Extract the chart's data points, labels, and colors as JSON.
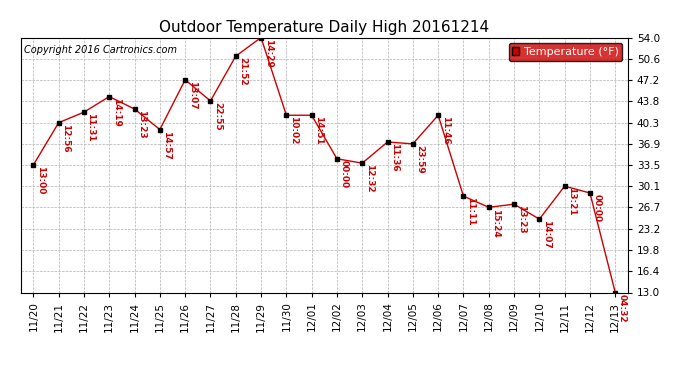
{
  "title": "Outdoor Temperature Daily High 20161214",
  "copyright": "Copyright 2016 Cartronics.com",
  "legend_label": "Temperature (°F)",
  "dates": [
    "11/20",
    "11/21",
    "11/22",
    "11/23",
    "11/24",
    "11/25",
    "11/26",
    "11/27",
    "11/28",
    "11/29",
    "11/30",
    "12/01",
    "12/02",
    "12/03",
    "12/04",
    "12/05",
    "12/06",
    "12/07",
    "12/08",
    "12/09",
    "12/10",
    "12/11",
    "12/12",
    "12/13"
  ],
  "temps": [
    33.5,
    40.3,
    42.0,
    44.5,
    42.5,
    39.2,
    47.2,
    43.8,
    51.0,
    54.0,
    41.5,
    41.5,
    34.5,
    33.8,
    37.2,
    36.9,
    41.5,
    28.5,
    26.7,
    27.2,
    24.8,
    30.1,
    29.0,
    13.0
  ],
  "time_labels": [
    "13:00",
    "12:56",
    "11:31",
    "14:19",
    "13:23",
    "14:57",
    "13:07",
    "22:55",
    "21:52",
    "14:29",
    "10:02",
    "14:51",
    "00:00",
    "12:32",
    "11:36",
    "23:59",
    "11:46",
    "11:11",
    "15:24",
    "13:23",
    "14:07",
    "13:21",
    "00:00",
    "04:32"
  ],
  "line_color": "#cc0000",
  "marker_color": "#000000",
  "bg_color": "#ffffff",
  "grid_color": "#b0b0b0",
  "text_color_red": "#cc0000",
  "yticks": [
    13.0,
    16.4,
    19.8,
    23.2,
    26.7,
    30.1,
    33.5,
    36.9,
    40.3,
    43.8,
    47.2,
    50.6,
    54.0
  ],
  "ylim": [
    13.0,
    54.0
  ],
  "title_fontsize": 11,
  "label_fontsize": 6.5,
  "tick_fontsize": 7.5,
  "legend_fontsize": 8,
  "copyright_fontsize": 7
}
